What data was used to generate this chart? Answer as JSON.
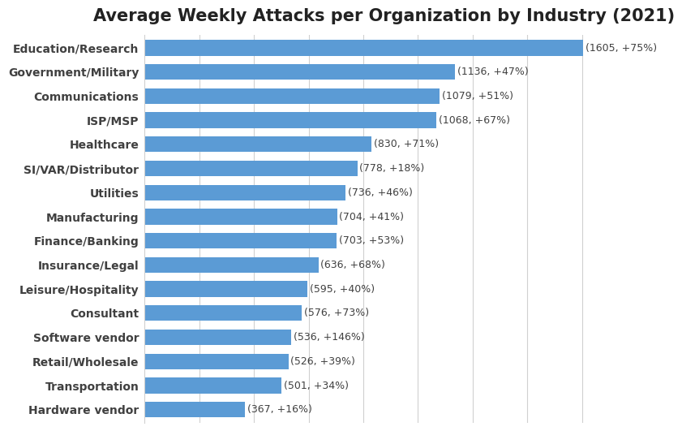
{
  "title": "Average Weekly Attacks per Organization by Industry (2021)",
  "categories": [
    "Hardware vendor",
    "Transportation",
    "Retail/Wholesale",
    "Software vendor",
    "Consultant",
    "Leisure/Hospitality",
    "Insurance/Legal",
    "Finance/Banking",
    "Manufacturing",
    "Utilities",
    "SI/VAR/Distributor",
    "Healthcare",
    "ISP/MSP",
    "Communications",
    "Government/Military",
    "Education/Research"
  ],
  "values": [
    367,
    501,
    526,
    536,
    576,
    595,
    636,
    703,
    704,
    736,
    778,
    830,
    1068,
    1079,
    1136,
    1605
  ],
  "labels": [
    "(367, +16%)",
    "(501, +34%)",
    "(526, +39%)",
    "(536, +146%)",
    "(576, +73%)",
    "(595, +40%)",
    "(636, +68%)",
    "(703, +53%)",
    "(704, +41%)",
    "(736, +46%)",
    "(778, +18%)",
    "(830, +71%)",
    "(1068, +67%)",
    "(1079, +51%)",
    "(1136, +47%)",
    "(1605, +75%)"
  ],
  "bar_color": "#5B9BD5",
  "background_color": "#ffffff",
  "title_fontsize": 15,
  "label_fontsize": 9,
  "tick_fontsize": 10,
  "ytick_fontsize": 10,
  "xlim": [
    0,
    1750
  ],
  "grid_color": "#d0d0d0",
  "text_color": "#404040",
  "bar_height": 0.65
}
